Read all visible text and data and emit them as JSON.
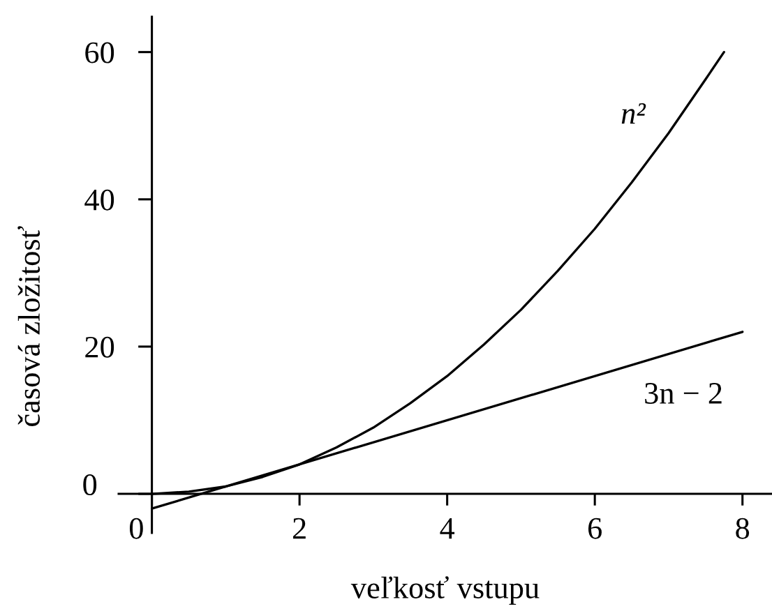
{
  "chart_data": {
    "type": "line",
    "xlabel": "veľkosť vstupu",
    "ylabel": "časová zložitosť",
    "xlim": [
      -0.45,
      8.4
    ],
    "ylim": [
      -5.3,
      64.8
    ],
    "xticks": [
      0,
      2,
      4,
      6,
      8
    ],
    "yticks": [
      0,
      20,
      40,
      60
    ],
    "marker": "none",
    "line_style": "solid",
    "series": [
      {
        "name": "n²",
        "color": "#000000",
        "x": [
          0,
          0.5,
          1,
          1.5,
          2,
          2.5,
          3,
          3.5,
          4,
          4.5,
          5,
          5.5,
          6,
          6.5,
          7,
          7.5,
          7.75
        ],
        "values": [
          0,
          0.3,
          1,
          2.3,
          4,
          6.3,
          9,
          12.3,
          16,
          20.3,
          25,
          30.3,
          36,
          42.3,
          49,
          56.3,
          60
        ]
      },
      {
        "name": "3n − 2",
        "color": "#000000",
        "x": [
          0,
          8
        ],
        "values": [
          -2,
          22
        ]
      }
    ]
  }
}
